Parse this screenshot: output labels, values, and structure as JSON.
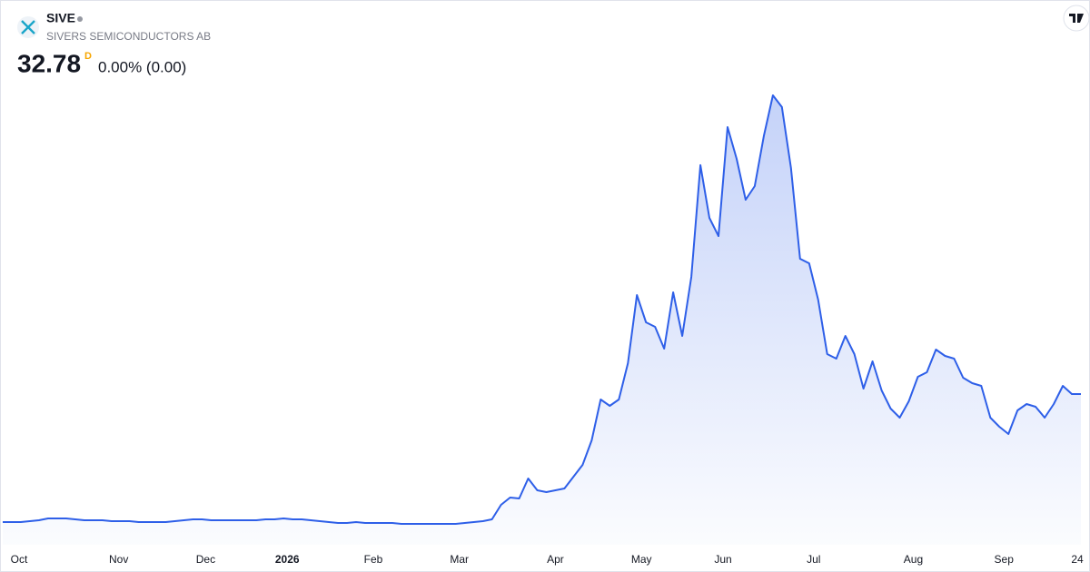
{
  "chart_data": {
    "type": "area",
    "title": "SIVE",
    "subtitle": "SIVERS SEMICONDUCTORS AB",
    "price": 32.78,
    "interval": "D",
    "change": "0.00% (0.00)",
    "color": "#2e5fe8",
    "values": [
      4.94,
      4.94,
      4.94,
      5.14,
      5.33,
      5.73,
      5.73,
      5.73,
      5.53,
      5.33,
      5.33,
      5.33,
      5.14,
      5.14,
      5.14,
      4.94,
      4.94,
      4.94,
      4.94,
      5.14,
      5.33,
      5.53,
      5.53,
      5.33,
      5.33,
      5.33,
      5.33,
      5.33,
      5.33,
      5.53,
      5.53,
      5.73,
      5.53,
      5.53,
      5.33,
      5.14,
      4.94,
      4.74,
      4.74,
      4.94,
      4.74,
      4.74,
      4.74,
      4.74,
      4.54,
      4.54,
      4.54,
      4.54,
      4.54,
      4.54,
      4.54,
      4.74,
      4.94,
      5.14,
      5.53,
      8.69,
      10.27,
      10.07,
      14.42,
      11.85,
      11.46,
      11.85,
      12.25,
      14.81,
      17.38,
      22.71,
      31.6,
      30.22,
      31.6,
      39.5,
      54.31,
      48.39,
      47.4,
      42.66,
      54.91,
      45.43,
      58.26,
      82.56,
      71.1,
      67.15,
      90.85,
      83.94,
      75.05,
      78.01,
      88.88,
      97.76,
      95.2,
      81.96,
      62.21,
      61.23,
      53.33,
      41.48,
      40.49,
      45.43,
      41.48,
      33.97,
      39.9,
      33.58,
      29.63,
      27.65,
      31.21,
      36.54,
      37.53,
      42.46,
      41.08,
      40.49,
      36.34,
      35.16,
      34.57,
      27.65,
      25.68,
      24.1,
      29.23,
      30.61,
      30.02,
      27.65,
      30.61,
      34.57,
      32.78,
      32.78
    ],
    "ylim": [
      0,
      110
    ],
    "xlim": [
      0,
      119
    ],
    "xticks": [
      {
        "value": 1.8,
        "label": "Oct"
      },
      {
        "value": 12.8,
        "label": "Nov"
      },
      {
        "value": 22.4,
        "label": "Dec"
      },
      {
        "value": 31.4,
        "label": "2026"
      },
      {
        "value": 40.9,
        "label": "Feb"
      },
      {
        "value": 50.4,
        "label": "Mar"
      },
      {
        "value": 61,
        "label": "Apr"
      },
      {
        "value": 70.5,
        "label": "May"
      },
      {
        "value": 79.5,
        "label": "Jun"
      },
      {
        "value": 89.5,
        "label": "Jul"
      },
      {
        "value": 100.5,
        "label": "Aug"
      },
      {
        "value": 110.5,
        "label": "Sep"
      },
      {
        "value": 118.6,
        "label": "24"
      }
    ]
  }
}
